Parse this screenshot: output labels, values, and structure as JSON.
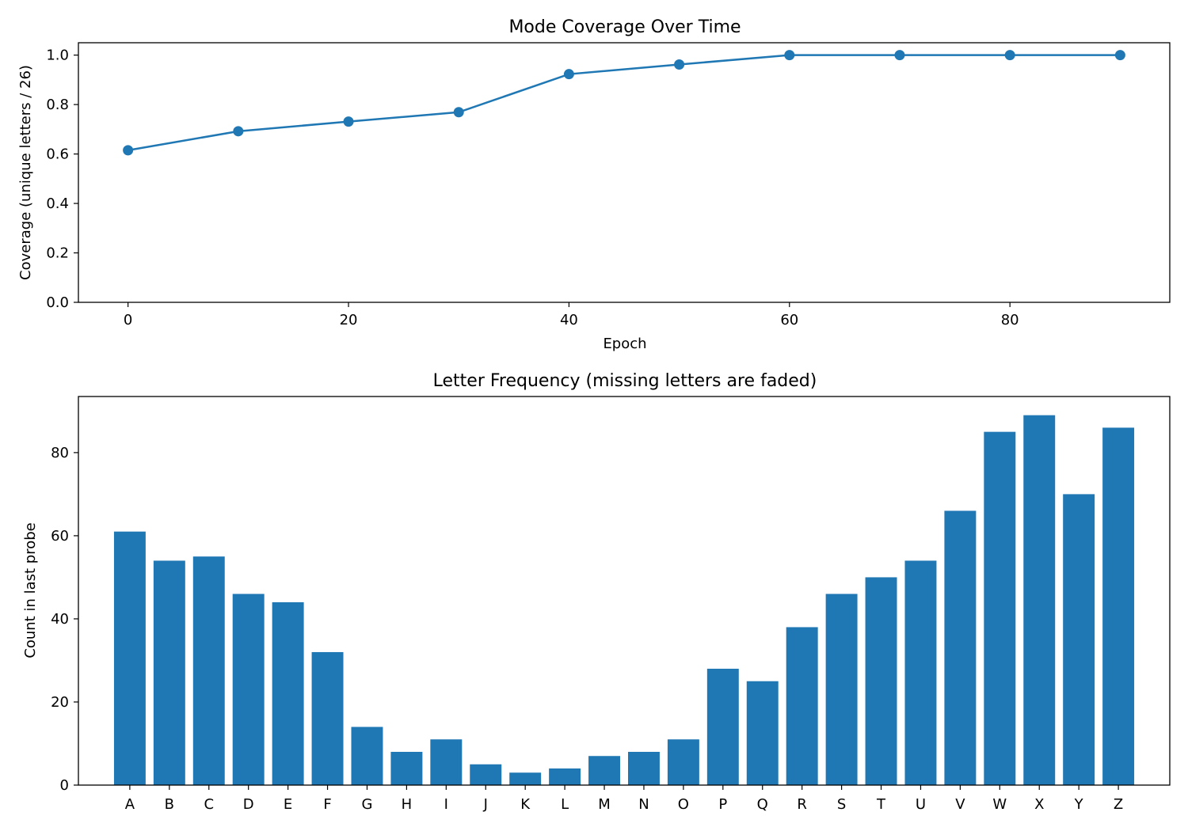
{
  "chart_data": [
    {
      "type": "line",
      "title": "Mode Coverage Over Time",
      "xlabel": "Epoch",
      "ylabel": "Coverage (unique letters / 26)",
      "x": [
        0,
        10,
        20,
        30,
        40,
        50,
        60,
        70,
        80,
        90
      ],
      "y": [
        0.615,
        0.692,
        0.731,
        0.769,
        0.923,
        0.962,
        1.0,
        1.0,
        1.0,
        1.0
      ],
      "xlim": [
        -4.5,
        94.5
      ],
      "ylim": [
        0,
        1.05
      ],
      "xticks": [
        0,
        20,
        40,
        60,
        80
      ],
      "yticks": [
        0.0,
        0.2,
        0.4,
        0.6,
        0.8,
        1.0
      ],
      "xtick_labels": [
        "0",
        "20",
        "40",
        "60",
        "80"
      ],
      "ytick_labels": [
        "0.0",
        "0.2",
        "0.4",
        "0.6",
        "0.8",
        "1.0"
      ],
      "color": "#1f77b4",
      "marker": "circle",
      "grid": false
    },
    {
      "type": "bar",
      "title": "Letter Frequency (missing letters are faded)",
      "xlabel": "",
      "ylabel": "Count in last probe",
      "categories": [
        "A",
        "B",
        "C",
        "D",
        "E",
        "F",
        "G",
        "H",
        "I",
        "J",
        "K",
        "L",
        "M",
        "N",
        "O",
        "P",
        "Q",
        "R",
        "S",
        "T",
        "U",
        "V",
        "W",
        "X",
        "Y",
        "Z"
      ],
      "values": [
        61,
        54,
        55,
        46,
        44,
        32,
        14,
        8,
        11,
        5,
        3,
        4,
        7,
        8,
        11,
        28,
        25,
        38,
        46,
        50,
        54,
        66,
        85,
        89,
        70,
        86
      ],
      "ylim": [
        0,
        93.5
      ],
      "yticks": [
        0,
        20,
        40,
        60,
        80
      ],
      "ytick_labels": [
        "0",
        "20",
        "40",
        "60",
        "80"
      ],
      "color": "#1f77b4",
      "grid": false
    }
  ]
}
